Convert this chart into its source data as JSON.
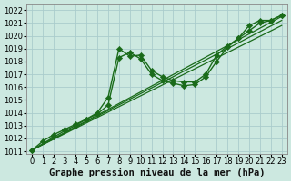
{
  "bg_color": "#cce8e0",
  "grid_color": "#aacccc",
  "line_color": "#1a6b1a",
  "marker_color": "#1a6b1a",
  "xlabel": "Graphe pression niveau de la mer (hPa)",
  "xlabel_fontsize": 7.5,
  "tick_fontsize": 6,
  "xlim": [
    -0.5,
    23.5
  ],
  "ylim": [
    1010.8,
    1022.5
  ],
  "yticks": [
    1011,
    1012,
    1013,
    1014,
    1015,
    1016,
    1017,
    1018,
    1019,
    1020,
    1021,
    1022
  ],
  "xticks": [
    0,
    1,
    2,
    3,
    4,
    5,
    6,
    7,
    8,
    9,
    10,
    11,
    12,
    13,
    14,
    15,
    16,
    17,
    18,
    19,
    20,
    21,
    22,
    23
  ],
  "series_wavy": [
    {
      "x": [
        0,
        1,
        2,
        3,
        4,
        5,
        6,
        7,
        8,
        9,
        10,
        11,
        12,
        13,
        14,
        15,
        16,
        17,
        18,
        19,
        20,
        21,
        22,
        23
      ],
      "y": [
        1011.1,
        1011.8,
        1012.3,
        1012.7,
        1013.1,
        1013.5,
        1014.0,
        1015.2,
        1019.0,
        1018.4,
        1018.5,
        1017.3,
        1016.8,
        1016.5,
        1016.4,
        1016.4,
        1017.0,
        1018.5,
        1019.2,
        1019.8,
        1020.8,
        1021.2,
        1021.2,
        1021.6
      ],
      "linewidth": 1.0,
      "markersize": 3.2
    },
    {
      "x": [
        0,
        2,
        3,
        4,
        5,
        6,
        7,
        8,
        9,
        10,
        11,
        12,
        13,
        14,
        15,
        16,
        17,
        18,
        19,
        20,
        21,
        22,
        23
      ],
      "y": [
        1011.1,
        1012.1,
        1012.6,
        1013.0,
        1013.5,
        1013.9,
        1014.6,
        1018.3,
        1018.7,
        1018.2,
        1017.0,
        1016.5,
        1016.3,
        1016.1,
        1016.2,
        1016.8,
        1018.0,
        1019.1,
        1019.8,
        1020.4,
        1021.0,
        1021.2,
        1021.6
      ],
      "linewidth": 1.0,
      "markersize": 3.2
    }
  ],
  "series_straight": [
    {
      "x": [
        0,
        23
      ],
      "y": [
        1011.1,
        1021.5
      ],
      "linewidth": 0.9
    },
    {
      "x": [
        0,
        23
      ],
      "y": [
        1011.1,
        1021.2
      ],
      "linewidth": 0.9
    },
    {
      "x": [
        0,
        23
      ],
      "y": [
        1011.1,
        1020.8
      ],
      "linewidth": 0.9
    }
  ]
}
